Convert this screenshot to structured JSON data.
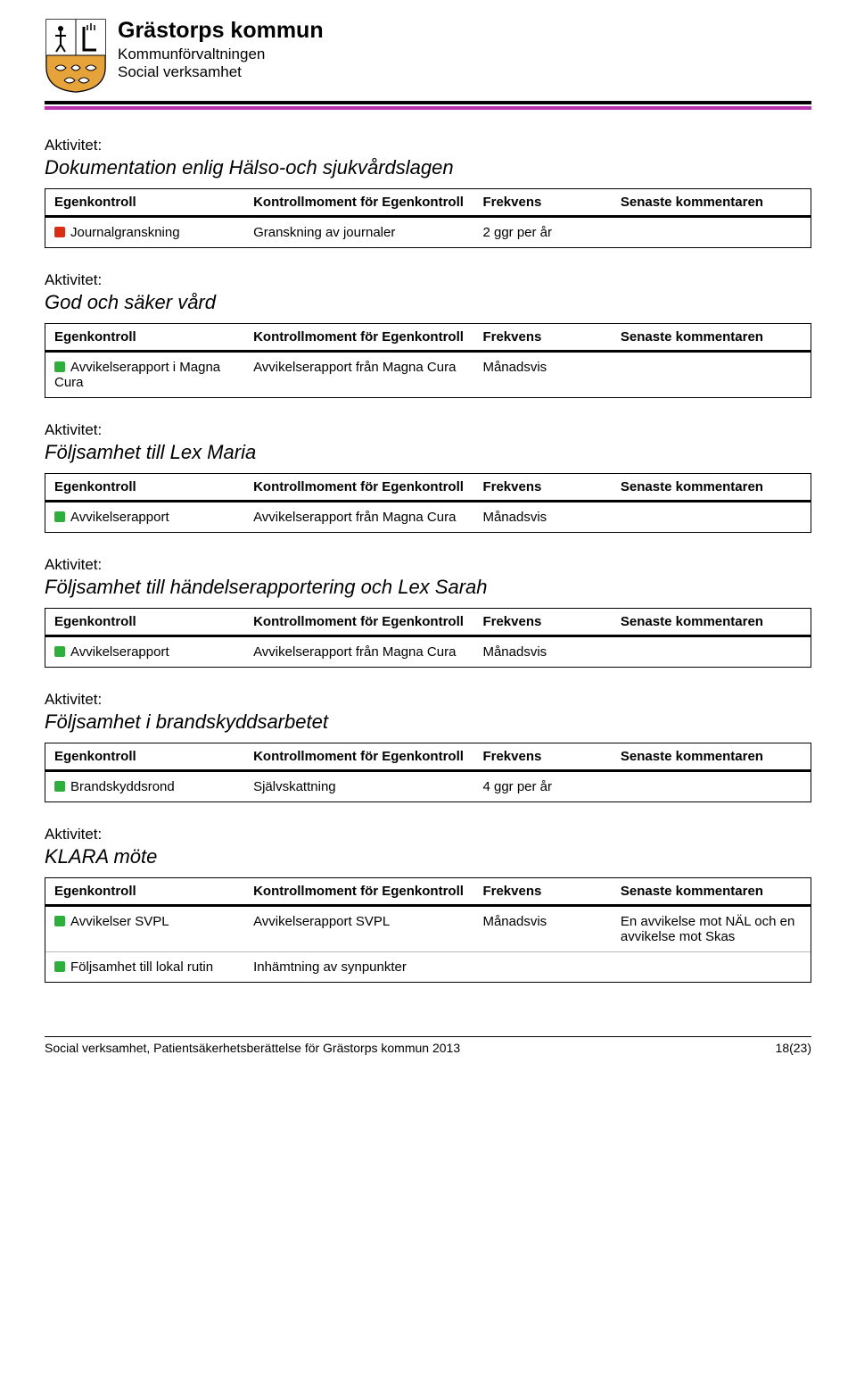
{
  "header": {
    "org": "Grästorps kommun",
    "dept1": "Kommunförvaltningen",
    "dept2": "Social verksamhet"
  },
  "labels": {
    "activity": "Aktivitet:",
    "col_egenkontroll": "Egenkontroll",
    "col_kontrollmoment": "Kontrollmoment för Egenkontroll",
    "col_frekvens": "Frekvens",
    "col_senaste": "Senaste kommentaren"
  },
  "activities": [
    {
      "title": "Dokumentation enlig Hälso-och sjukvårdslagen",
      "rows": [
        {
          "status": "red",
          "egen": "Journalgranskning",
          "moment": "Granskning av journaler",
          "frekvens": "2 ggr per år",
          "kommentar": ""
        }
      ]
    },
    {
      "title": "God och säker vård",
      "rows": [
        {
          "status": "green",
          "egen": "Avvikelserapport i Magna Cura",
          "moment": "Avvikelserapport från Magna Cura",
          "frekvens": "Månadsvis",
          "kommentar": ""
        }
      ]
    },
    {
      "title": "Följsamhet till Lex Maria",
      "rows": [
        {
          "status": "green",
          "egen": "Avvikelserapport",
          "moment": "Avvikelserapport från Magna Cura",
          "frekvens": "Månadsvis",
          "kommentar": ""
        }
      ]
    },
    {
      "title": "Följsamhet till händelserapportering och Lex Sarah",
      "rows": [
        {
          "status": "green",
          "egen": "Avvikelserapport",
          "moment": "Avvikelserapport från Magna Cura",
          "frekvens": "Månadsvis",
          "kommentar": ""
        }
      ]
    },
    {
      "title": "Följsamhet i brandskyddsarbetet",
      "rows": [
        {
          "status": "green",
          "egen": "Brandskyddsrond",
          "moment": "Självskattning",
          "frekvens": "4 ggr per år",
          "kommentar": ""
        }
      ]
    },
    {
      "title": "KLARA möte",
      "rows": [
        {
          "status": "green",
          "egen": "Avvikelser SVPL",
          "moment": "Avvikelserapport SVPL",
          "frekvens": "Månadsvis",
          "kommentar": "En avvikelse mot NÄL och en avvikelse mot Skas"
        },
        {
          "status": "green",
          "egen": "Följsamhet till lokal rutin",
          "moment": "Inhämtning av synpunkter",
          "frekvens": "",
          "kommentar": ""
        }
      ]
    }
  ],
  "footer": {
    "left": "Social verksamhet, Patientsäkerhetsberättelse för Grästorps kommun 2013",
    "right": "18(23)"
  },
  "colors": {
    "rule_bottom": "#b933ad",
    "status_red": "#d92e16",
    "status_green": "#2eae3a"
  }
}
